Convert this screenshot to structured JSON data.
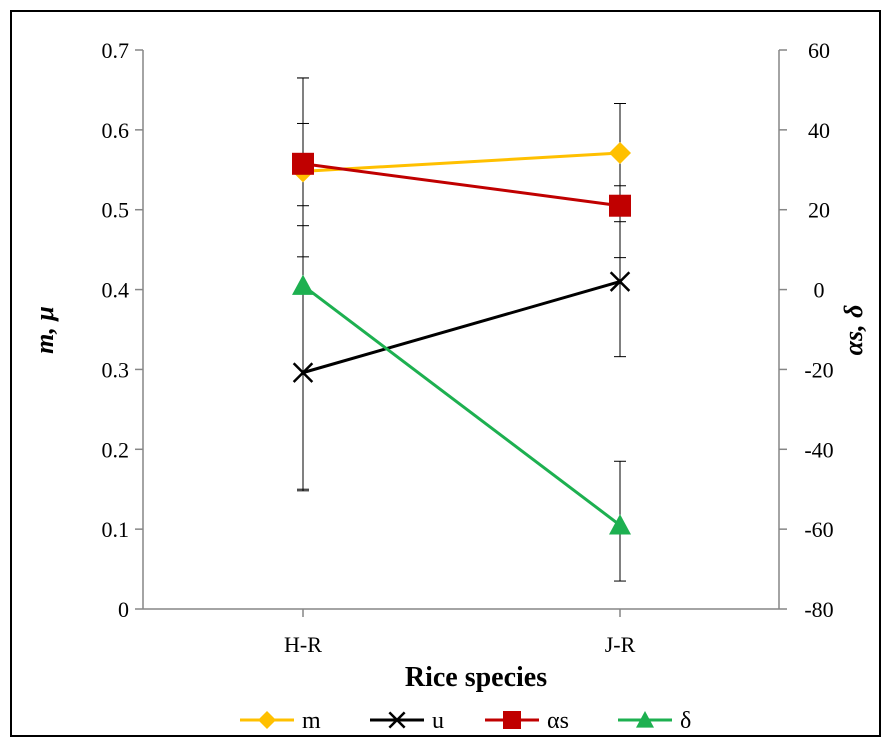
{
  "chart_data": {
    "type": "line",
    "categories": [
      "H-R",
      "J-R"
    ],
    "xlabel": "Rice species",
    "ylabel_left": "m, μ",
    "ylabel_right": "αs, δ",
    "y_left": {
      "min": 0,
      "max": 0.7,
      "step": 0.1,
      "ticks": [
        "0",
        "0.1",
        "0.2",
        "0.3",
        "0.4",
        "0.5",
        "0.6",
        "0.7"
      ]
    },
    "y_right": {
      "min": -80,
      "max": 60,
      "step": 20,
      "ticks": [
        "-80",
        "-60",
        "-40",
        "-20",
        "0",
        "20",
        "40",
        "60"
      ]
    },
    "legend_position": "bottom",
    "series": [
      {
        "name": "m",
        "axis": "left",
        "color": "#FFC000",
        "marker": "diamond",
        "values": [
          0.548,
          0.571
        ],
        "err_low": [
          0.505,
          0.53
        ],
        "err_high": [
          0.608,
          0.633
        ]
      },
      {
        "name": "u",
        "axis": "left",
        "color": "#000000",
        "marker": "x",
        "values": [
          0.296,
          0.41
        ],
        "err_low": [
          0.148,
          0.316
        ],
        "err_high": [
          0.441,
          0.485
        ]
      },
      {
        "name": "αs",
        "axis": "right",
        "color": "#C00000",
        "marker": "square",
        "values": [
          31.5,
          21
        ],
        "err_low": [
          16,
          8
        ],
        "err_high": [
          53,
          34
        ]
      },
      {
        "name": "δ",
        "axis": "right",
        "color": "#1DB050",
        "marker": "triangle",
        "values": [
          1,
          -59
        ],
        "err_low": [
          -50,
          -73
        ],
        "err_high": [
          53,
          -43
        ]
      }
    ]
  }
}
